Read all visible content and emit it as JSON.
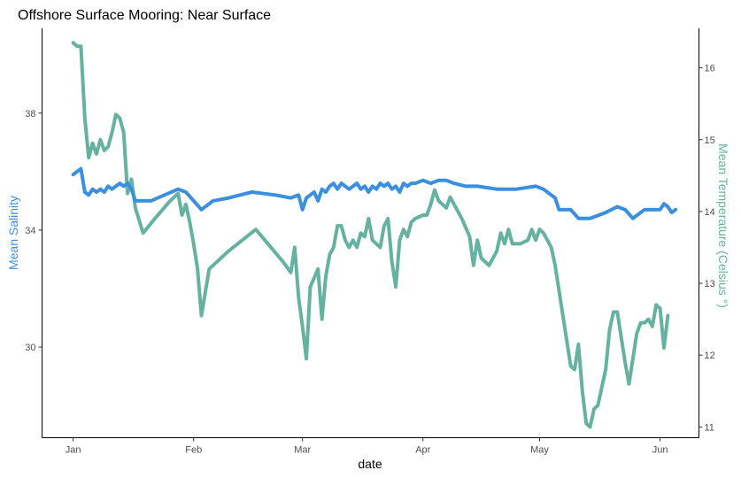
{
  "chart_data": {
    "type": "line",
    "title": "Offshore Surface Mooring: Near Surface",
    "xlabel": "date",
    "ylabel_left": "Mean Salinity",
    "ylabel_right": "Mean Temperature (Celsius °)",
    "x_tick_labels": [
      "Jan",
      "Feb",
      "Mar",
      "Apr",
      "May",
      "Jun"
    ],
    "x_tick_dates": [
      "2019-01-01",
      "2019-02-01",
      "2019-03-01",
      "2019-04-01",
      "2019-05-01",
      "2019-06-01"
    ],
    "xlim": [
      "2018-12-24",
      "2019-06-11"
    ],
    "y_left_ticks": [
      30,
      34,
      38
    ],
    "ylim_left": [
      26.9,
      40.9
    ],
    "y_right_ticks": [
      11,
      12,
      13,
      14,
      15,
      16
    ],
    "ylim_right": [
      10.85,
      16.55
    ],
    "grid": false,
    "colors": {
      "salinity": "#3a8fde",
      "temperature": "#66b2a0"
    },
    "series": [
      {
        "axis": "left",
        "color": "#3a8fde",
        "points": [
          [
            "2019-01-01",
            35.9
          ],
          [
            "2019-01-03",
            36.1
          ],
          [
            "2019-01-04",
            35.3
          ],
          [
            "2019-01-05",
            35.2
          ],
          [
            "2019-01-06",
            35.4
          ],
          [
            "2019-01-07",
            35.3
          ],
          [
            "2019-01-08",
            35.4
          ],
          [
            "2019-01-09",
            35.3
          ],
          [
            "2019-01-10",
            35.5
          ],
          [
            "2019-01-11",
            35.4
          ],
          [
            "2019-01-12",
            35.5
          ],
          [
            "2019-01-13",
            35.6
          ],
          [
            "2019-01-14",
            35.5
          ],
          [
            "2019-01-15",
            35.6
          ],
          [
            "2019-01-16",
            35.4
          ],
          [
            "2019-01-17",
            35.0
          ],
          [
            "2019-01-19",
            35.0
          ],
          [
            "2019-01-21",
            35.0
          ],
          [
            "2019-01-28",
            35.4
          ],
          [
            "2019-01-30",
            35.3
          ],
          [
            "2019-02-03",
            34.7
          ],
          [
            "2019-02-06",
            35.0
          ],
          [
            "2019-02-10",
            35.1
          ],
          [
            "2019-02-16",
            35.3
          ],
          [
            "2019-02-22",
            35.2
          ],
          [
            "2019-02-26",
            35.1
          ],
          [
            "2019-02-28",
            35.2
          ],
          [
            "2019-03-01",
            34.7
          ],
          [
            "2019-03-02",
            35.1
          ],
          [
            "2019-03-04",
            35.3
          ],
          [
            "2019-03-05",
            35.0
          ],
          [
            "2019-03-06",
            35.4
          ],
          [
            "2019-03-07",
            35.3
          ],
          [
            "2019-03-08",
            35.5
          ],
          [
            "2019-03-09",
            35.6
          ],
          [
            "2019-03-10",
            35.4
          ],
          [
            "2019-03-11",
            35.6
          ],
          [
            "2019-03-12",
            35.5
          ],
          [
            "2019-03-13",
            35.4
          ],
          [
            "2019-03-14",
            35.5
          ],
          [
            "2019-03-15",
            35.6
          ],
          [
            "2019-03-16",
            35.4
          ],
          [
            "2019-03-17",
            35.5
          ],
          [
            "2019-03-18",
            35.3
          ],
          [
            "2019-03-19",
            35.5
          ],
          [
            "2019-03-20",
            35.4
          ],
          [
            "2019-03-21",
            35.6
          ],
          [
            "2019-03-22",
            35.5
          ],
          [
            "2019-03-23",
            35.6
          ],
          [
            "2019-03-24",
            35.4
          ],
          [
            "2019-03-25",
            35.5
          ],
          [
            "2019-03-26",
            35.3
          ],
          [
            "2019-03-27",
            35.6
          ],
          [
            "2019-03-28",
            35.5
          ],
          [
            "2019-03-29",
            35.6
          ],
          [
            "2019-03-30",
            35.6
          ],
          [
            "2019-04-01",
            35.7
          ],
          [
            "2019-04-03",
            35.6
          ],
          [
            "2019-04-05",
            35.7
          ],
          [
            "2019-04-07",
            35.7
          ],
          [
            "2019-04-09",
            35.6
          ],
          [
            "2019-04-12",
            35.5
          ],
          [
            "2019-04-15",
            35.5
          ],
          [
            "2019-04-20",
            35.4
          ],
          [
            "2019-04-25",
            35.4
          ],
          [
            "2019-04-30",
            35.5
          ],
          [
            "2019-05-02",
            35.4
          ],
          [
            "2019-05-05",
            35.1
          ],
          [
            "2019-05-06",
            34.7
          ],
          [
            "2019-05-09",
            34.7
          ],
          [
            "2019-05-11",
            34.4
          ],
          [
            "2019-05-14",
            34.4
          ],
          [
            "2019-05-18",
            34.6
          ],
          [
            "2019-05-21",
            34.8
          ],
          [
            "2019-05-23",
            34.7
          ],
          [
            "2019-05-25",
            34.4
          ],
          [
            "2019-05-28",
            34.7
          ],
          [
            "2019-06-01",
            34.7
          ],
          [
            "2019-06-02",
            34.9
          ],
          [
            "2019-06-03",
            34.8
          ],
          [
            "2019-06-04",
            34.6
          ],
          [
            "2019-06-05",
            34.7
          ]
        ]
      },
      {
        "axis": "right",
        "color": "#66b2a0",
        "points": [
          [
            "2019-01-01",
            16.35
          ],
          [
            "2019-01-02",
            16.3
          ],
          [
            "2019-01-03",
            16.3
          ],
          [
            "2019-01-04",
            15.3
          ],
          [
            "2019-01-05",
            14.75
          ],
          [
            "2019-01-06",
            14.95
          ],
          [
            "2019-01-07",
            14.8
          ],
          [
            "2019-01-08",
            15.0
          ],
          [
            "2019-01-09",
            14.85
          ],
          [
            "2019-01-10",
            14.9
          ],
          [
            "2019-01-11",
            15.1
          ],
          [
            "2019-01-12",
            15.35
          ],
          [
            "2019-01-13",
            15.3
          ],
          [
            "2019-01-14",
            15.1
          ],
          [
            "2019-01-15",
            14.25
          ],
          [
            "2019-01-16",
            14.45
          ],
          [
            "2019-01-17",
            14.05
          ],
          [
            "2019-01-19",
            13.7
          ],
          [
            "2019-01-22",
            13.9
          ],
          [
            "2019-01-26",
            14.15
          ],
          [
            "2019-01-28",
            14.25
          ],
          [
            "2019-01-29",
            13.95
          ],
          [
            "2019-01-30",
            14.1
          ],
          [
            "2019-01-31",
            13.85
          ],
          [
            "2019-02-01",
            13.55
          ],
          [
            "2019-02-02",
            13.2
          ],
          [
            "2019-02-03",
            12.55
          ],
          [
            "2019-02-05",
            13.2
          ],
          [
            "2019-02-10",
            13.45
          ],
          [
            "2019-02-17",
            13.75
          ],
          [
            "2019-02-24",
            13.3
          ],
          [
            "2019-02-26",
            13.15
          ],
          [
            "2019-02-27",
            13.5
          ],
          [
            "2019-02-28",
            12.8
          ],
          [
            "2019-03-01",
            12.4
          ],
          [
            "2019-03-02",
            11.95
          ],
          [
            "2019-03-03",
            12.95
          ],
          [
            "2019-03-05",
            13.2
          ],
          [
            "2019-03-06",
            12.5
          ],
          [
            "2019-03-07",
            13.1
          ],
          [
            "2019-03-08",
            13.4
          ],
          [
            "2019-03-09",
            13.5
          ],
          [
            "2019-03-10",
            13.8
          ],
          [
            "2019-03-11",
            13.8
          ],
          [
            "2019-03-12",
            13.6
          ],
          [
            "2019-03-13",
            13.5
          ],
          [
            "2019-03-14",
            13.6
          ],
          [
            "2019-03-15",
            13.5
          ],
          [
            "2019-03-16",
            13.7
          ],
          [
            "2019-03-17",
            13.65
          ],
          [
            "2019-03-18",
            13.9
          ],
          [
            "2019-03-19",
            13.6
          ],
          [
            "2019-03-20",
            13.55
          ],
          [
            "2019-03-21",
            13.5
          ],
          [
            "2019-03-22",
            13.8
          ],
          [
            "2019-03-23",
            13.9
          ],
          [
            "2019-03-24",
            13.3
          ],
          [
            "2019-03-25",
            12.95
          ],
          [
            "2019-03-26",
            13.6
          ],
          [
            "2019-03-27",
            13.75
          ],
          [
            "2019-03-28",
            13.65
          ],
          [
            "2019-03-29",
            13.85
          ],
          [
            "2019-03-30",
            13.9
          ],
          [
            "2019-04-01",
            13.95
          ],
          [
            "2019-04-02",
            13.95
          ],
          [
            "2019-04-03",
            14.1
          ],
          [
            "2019-04-04",
            14.3
          ],
          [
            "2019-04-05",
            14.15
          ],
          [
            "2019-04-07",
            14.05
          ],
          [
            "2019-04-08",
            14.2
          ],
          [
            "2019-04-09",
            14.1
          ],
          [
            "2019-04-11",
            13.9
          ],
          [
            "2019-04-13",
            13.65
          ],
          [
            "2019-04-14",
            13.25
          ],
          [
            "2019-04-15",
            13.6
          ],
          [
            "2019-04-16",
            13.35
          ],
          [
            "2019-04-18",
            13.25
          ],
          [
            "2019-04-20",
            13.45
          ],
          [
            "2019-04-21",
            13.7
          ],
          [
            "2019-04-22",
            13.55
          ],
          [
            "2019-04-23",
            13.75
          ],
          [
            "2019-04-24",
            13.55
          ],
          [
            "2019-04-26",
            13.55
          ],
          [
            "2019-04-28",
            13.6
          ],
          [
            "2019-04-29",
            13.75
          ],
          [
            "2019-04-30",
            13.6
          ],
          [
            "2019-05-01",
            13.75
          ],
          [
            "2019-05-02",
            13.7
          ],
          [
            "2019-05-04",
            13.5
          ],
          [
            "2019-05-05",
            13.25
          ],
          [
            "2019-05-06",
            12.9
          ],
          [
            "2019-05-07",
            12.55
          ],
          [
            "2019-05-08",
            12.2
          ],
          [
            "2019-05-09",
            11.85
          ],
          [
            "2019-05-10",
            11.8
          ],
          [
            "2019-05-11",
            12.15
          ],
          [
            "2019-05-12",
            11.5
          ],
          [
            "2019-05-13",
            11.05
          ],
          [
            "2019-05-14",
            11.0
          ],
          [
            "2019-05-15",
            11.25
          ],
          [
            "2019-05-16",
            11.3
          ],
          [
            "2019-05-17",
            11.55
          ],
          [
            "2019-05-18",
            11.8
          ],
          [
            "2019-05-19",
            12.35
          ],
          [
            "2019-05-20",
            12.6
          ],
          [
            "2019-05-21",
            12.6
          ],
          [
            "2019-05-22",
            12.25
          ],
          [
            "2019-05-23",
            11.9
          ],
          [
            "2019-05-24",
            11.6
          ],
          [
            "2019-05-25",
            11.95
          ],
          [
            "2019-05-26",
            12.3
          ],
          [
            "2019-05-27",
            12.45
          ],
          [
            "2019-05-28",
            12.45
          ],
          [
            "2019-05-29",
            12.5
          ],
          [
            "2019-05-30",
            12.4
          ],
          [
            "2019-05-31",
            12.7
          ],
          [
            "2019-06-01",
            12.65
          ],
          [
            "2019-06-02",
            12.1
          ],
          [
            "2019-06-03",
            12.55
          ]
        ]
      }
    ]
  }
}
